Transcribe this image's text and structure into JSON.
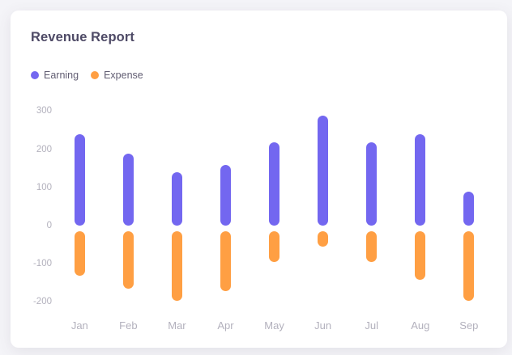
{
  "window": {
    "background_color": "#f4f4f8",
    "card_background_color": "#ffffff"
  },
  "card": {
    "title": "Revenue Report"
  },
  "legend": {
    "items": [
      {
        "label": "Earning",
        "color": "#7367f0"
      },
      {
        "label": "Expense",
        "color": "#ff9f43"
      }
    ]
  },
  "chart_data": {
    "type": "bar",
    "title": "Revenue Report",
    "categories": [
      "Jan",
      "Feb",
      "Mar",
      "Apr",
      "May",
      "Jun",
      "Jul",
      "Aug",
      "Sep"
    ],
    "series": [
      {
        "name": "Earning",
        "color": "#7367f0",
        "values": [
          240,
          190,
          140,
          160,
          220,
          290,
          220,
          240,
          90
        ]
      },
      {
        "name": "Expense",
        "color": "#ff9f43",
        "values": [
          -130,
          -165,
          -195,
          -170,
          -95,
          -55,
          -95,
          -140,
          -195
        ]
      }
    ],
    "xlabel": "",
    "ylabel": "",
    "ylim": [
      -200,
      300
    ],
    "yticks": [
      300,
      200,
      100,
      0,
      -100,
      -200
    ],
    "grid": false,
    "legend_position": "top-left",
    "bar_style": "rounded-capsule",
    "axis_label_color": "#b3b1bd"
  }
}
